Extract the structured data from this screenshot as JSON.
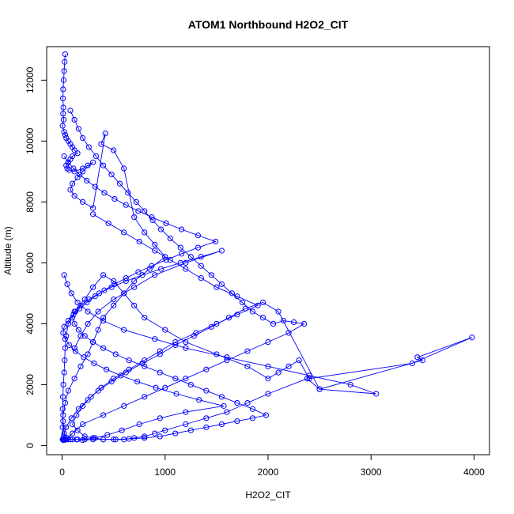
{
  "chart_data": {
    "type": "scatter",
    "title": "ATOM1 Northbound H2O2_CIT",
    "xlabel": "H2O2_CIT",
    "ylabel": "Altitude (m)",
    "xlim": [
      -150,
      4150
    ],
    "ylim": [
      -300,
      13100
    ],
    "x_ticks": [
      0,
      1000,
      2000,
      3000,
      4000
    ],
    "x_tick_labels": [
      "0",
      "1000",
      "2000",
      "3000",
      "4000"
    ],
    "y_ticks": [
      0,
      2000,
      4000,
      6000,
      8000,
      10000,
      12000
    ],
    "y_tick_labels": [
      "0",
      "2000",
      "4000",
      "6000",
      "8000",
      "10000",
      "12000"
    ],
    "grid": false,
    "marker": "open-circle",
    "connected": true,
    "series_color": "#0000ff",
    "series": [
      {
        "x": [
          30,
          25,
          20,
          15,
          10,
          8,
          12,
          10,
          15,
          5,
          20,
          30,
          40,
          60,
          80,
          100,
          120,
          150,
          100,
          80,
          60,
          40,
          50,
          70,
          120,
          200,
          250,
          300,
          200,
          150,
          100,
          80,
          120,
          200,
          300,
          420,
          380,
          500,
          600,
          700,
          800,
          900,
          1000,
          850,
          700,
          600,
          500,
          400,
          350,
          300,
          250,
          180,
          120,
          60,
          30,
          10,
          5,
          10,
          20,
          30,
          20,
          10,
          5,
          8,
          12,
          20,
          25,
          30,
          40,
          60,
          120,
          220,
          300,
          400,
          500,
          600,
          700,
          800,
          1000,
          1200,
          1500,
          1800,
          2000,
          2100,
          2200,
          2300,
          2400,
          3400,
          3980,
          3450,
          3500,
          2500,
          2380,
          2000,
          1800,
          1600,
          1400,
          1200,
          1000,
          900,
          800,
          700,
          600,
          500,
          400,
          300,
          200,
          150,
          100,
          60,
          40,
          20,
          10,
          5
        ],
        "y": [
          12850,
          12600,
          12300,
          12000,
          11700,
          11400,
          11100,
          10900,
          10700,
          10500,
          10300,
          10200,
          10100,
          10000,
          9900,
          9800,
          9700,
          9600,
          9500,
          9400,
          9300,
          9200,
          9100,
          9050,
          9000,
          9100,
          9200,
          9300,
          9000,
          8800,
          8600,
          8400,
          8200,
          8000,
          7800,
          10250,
          9900,
          9700,
          9100,
          7500,
          7000,
          6600,
          6200,
          5800,
          5400,
          5000,
          4600,
          4200,
          3800,
          3400,
          3000,
          2600,
          2200,
          1800,
          1400,
          1000,
          600,
          200,
          180,
          200,
          400,
          800,
          1200,
          1600,
          2000,
          2400,
          2800,
          3200,
          3600,
          4000,
          4400,
          4800,
          5200,
          5600,
          5400,
          5000,
          4600,
          4200,
          3800,
          3400,
          3000,
          2600,
          2200,
          2400,
          2600,
          2800,
          2200,
          2700,
          3550,
          2900,
          2800,
          1850,
          2200,
          1700,
          1400,
          1100,
          900,
          700,
          500,
          400,
          300,
          250,
          200,
          200,
          200,
          200,
          180,
          200,
          200,
          200,
          200,
          200,
          200,
          200
        ]
      },
      {
        "x": [
          80,
          120,
          160,
          200,
          260,
          330,
          400,
          480,
          560,
          640,
          720,
          800,
          880,
          960,
          1050,
          1150,
          1250,
          1350,
          1450,
          1550,
          1650,
          1750,
          1850,
          1950,
          2050,
          2150,
          2250,
          2350,
          2200,
          2000,
          1800,
          1600,
          1400,
          1200,
          1000,
          800,
          600,
          400,
          200,
          100,
          50,
          20,
          10,
          15,
          40,
          90,
          160,
          250,
          350,
          480,
          620,
          780,
          950,
          1100,
          1280,
          1450,
          1620,
          1780,
          1950,
          2100,
          2500,
          3050,
          2800,
          2400,
          2000,
          1600,
          1200,
          900,
          600,
          400,
          250,
          150,
          90,
          50,
          20
        ],
        "y": [
          11000,
          10700,
          10400,
          10100,
          9800,
          9500,
          9200,
          8900,
          8600,
          8300,
          8000,
          7700,
          7400,
          7100,
          6800,
          6500,
          6200,
          5900,
          5600,
          5300,
          5000,
          4700,
          4400,
          4200,
          4000,
          4100,
          4050,
          4000,
          3700,
          3400,
          3100,
          2800,
          2500,
          2200,
          1900,
          1600,
          1300,
          1000,
          700,
          400,
          250,
          200,
          180,
          300,
          600,
          900,
          1200,
          1500,
          1800,
          2100,
          2400,
          2700,
          3000,
          3300,
          3600,
          3900,
          4200,
          4500,
          4700,
          4400,
          1850,
          1700,
          2000,
          2300,
          2600,
          2900,
          3200,
          3500,
          3800,
          4100,
          4400,
          4700,
          5000,
          5300,
          5600
        ]
      },
      {
        "x": [
          300,
          450,
          600,
          750,
          900,
          1050,
          1200,
          1350,
          1500,
          1700,
          1900,
          1700,
          1500,
          1300,
          1100,
          950,
          800,
          650,
          500,
          380,
          280,
          200,
          140,
          100,
          150,
          220,
          300,
          400,
          520,
          650,
          800,
          950,
          1100,
          1250,
          1400,
          1550,
          1700,
          1850,
          1980,
          1850,
          1700,
          1550,
          1400,
          1250,
          1100,
          950,
          800,
          650,
          520,
          400,
          300,
          220,
          160,
          120,
          100,
          130,
          180,
          260,
          360,
          480,
          620,
          780,
          960,
          1150,
          1350,
          1550,
          1200,
          900,
          700,
          500,
          350,
          250,
          180,
          120
        ],
        "y": [
          7600,
          7300,
          7000,
          6700,
          6400,
          6100,
          5800,
          5500,
          5200,
          4900,
          4600,
          4300,
          4000,
          3700,
          3400,
          3100,
          2800,
          2500,
          2200,
          1900,
          1600,
          1300,
          1000,
          700,
          500,
          300,
          250,
          200,
          200,
          220,
          250,
          300,
          400,
          500,
          600,
          700,
          800,
          900,
          1000,
          1200,
          1400,
          1600,
          1800,
          2000,
          2200,
          2400,
          2600,
          2800,
          3000,
          3200,
          3400,
          3600,
          3800,
          4000,
          4200,
          4400,
          4600,
          4800,
          5000,
          5200,
          5400,
          5600,
          5800,
          6000,
          6200,
          6400,
          6000,
          5600,
          5200,
          4800,
          4400,
          4000,
          3600,
          3200
        ]
      },
      {
        "x": [
          20,
          60,
          110,
          170,
          240,
          320,
          410,
          510,
          620,
          740,
          870,
          1010,
          1160,
          1320,
          1490,
          1320,
          1160,
          1010,
          870,
          740,
          620,
          510,
          410,
          320,
          240,
          170,
          110,
          60,
          20,
          10,
          30,
          70,
          130,
          210,
          310,
          430,
          570,
          730,
          910,
          1110,
          1330,
          1570,
          1200,
          950,
          750,
          580,
          440,
          320,
          220,
          140,
          80,
          40
        ],
        "y": [
          9500,
          9300,
          9100,
          8900,
          8700,
          8500,
          8300,
          8100,
          7900,
          7700,
          7500,
          7300,
          7100,
          6900,
          6700,
          6500,
          6300,
          6100,
          5900,
          5700,
          5500,
          5300,
          5100,
          4900,
          4700,
          4500,
          4300,
          4100,
          3900,
          3700,
          3500,
          3300,
          3100,
          2900,
          2700,
          2500,
          2300,
          2100,
          1900,
          1700,
          1500,
          1300,
          1100,
          900,
          700,
          500,
          350,
          250,
          200,
          200,
          200,
          200
        ]
      }
    ]
  }
}
